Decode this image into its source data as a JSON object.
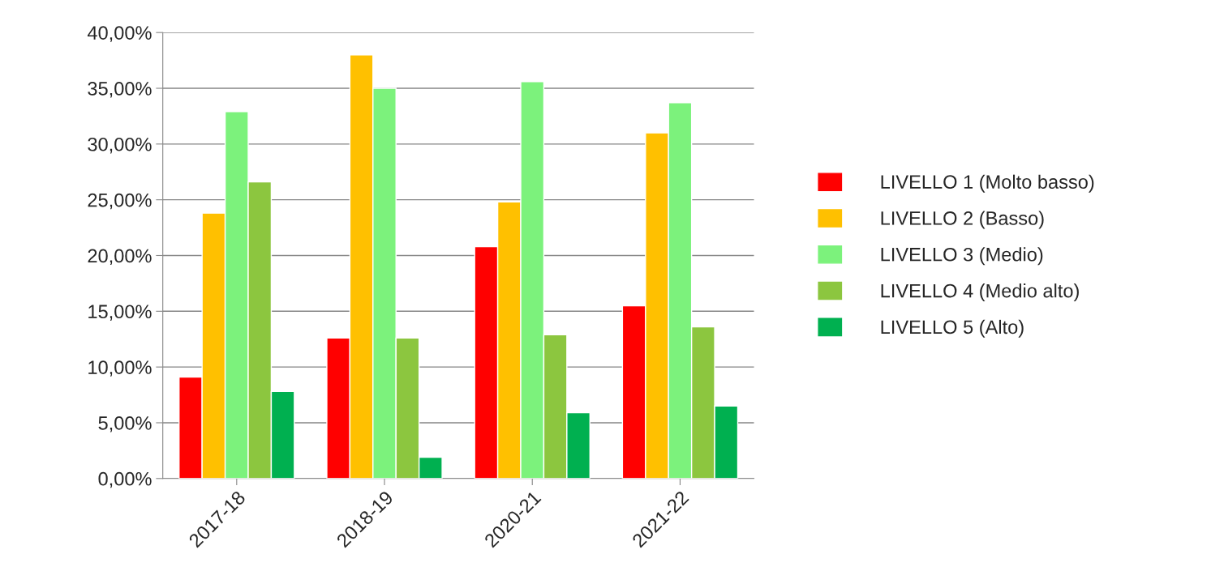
{
  "chart_data": {
    "type": "bar",
    "categories": [
      "2017-18",
      "2018-19",
      "2020-21",
      "2021-22"
    ],
    "series": [
      {
        "name": "LIVELLO 1 (Molto basso)",
        "color": "#ff0000",
        "values": [
          9.1,
          12.6,
          20.8,
          15.5
        ]
      },
      {
        "name": "LIVELLO 2 (Basso)",
        "color": "#ffc000",
        "values": [
          23.8,
          38.0,
          24.8,
          31.0
        ]
      },
      {
        "name": "LIVELLO 3 (Medio)",
        "color": "#7cf27c",
        "values": [
          32.9,
          35.0,
          35.6,
          33.7
        ]
      },
      {
        "name": "LIVELLO 4 (Medio alto)",
        "color": "#8cc63f",
        "values": [
          26.6,
          12.6,
          12.9,
          13.6
        ]
      },
      {
        "name": "LIVELLO 5 (Alto)",
        "color": "#00b050",
        "values": [
          7.8,
          1.9,
          5.9,
          6.5
        ]
      }
    ],
    "ylim": [
      0,
      40
    ],
    "yticks": [
      {
        "value": 0,
        "label": "0,00%"
      },
      {
        "value": 5,
        "label": "5,00%"
      },
      {
        "value": 10,
        "label": "10,00%"
      },
      {
        "value": 15,
        "label": "15,00%"
      },
      {
        "value": 20,
        "label": "20,00%"
      },
      {
        "value": 25,
        "label": "25,00%"
      },
      {
        "value": 30,
        "label": "30,00%"
      },
      {
        "value": 35,
        "label": "35,00%"
      },
      {
        "value": 40,
        "label": "40,00%"
      }
    ],
    "grid": "y",
    "legend": "right"
  }
}
